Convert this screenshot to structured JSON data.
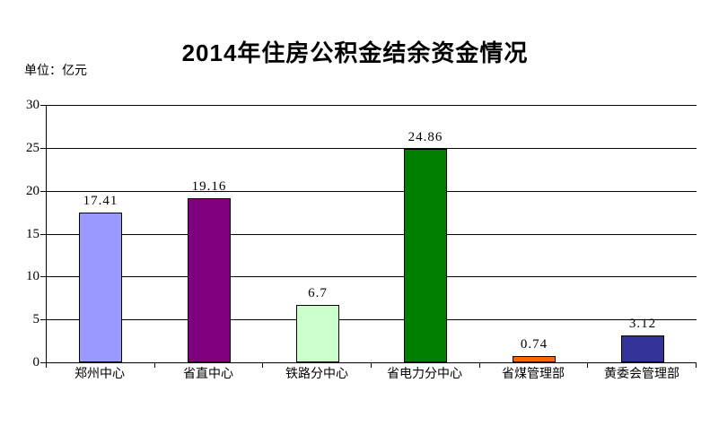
{
  "chart_data": {
    "type": "bar",
    "title": "2014年住房公积金结余资金情况",
    "unit_label": "单位：亿元",
    "categories": [
      "郑州中心",
      "省直中心",
      "铁路分中心",
      "省电力分中心",
      "省煤管理部",
      "黄委会管理部"
    ],
    "values": [
      17.41,
      19.16,
      6.7,
      24.86,
      0.74,
      3.12
    ],
    "value_labels": [
      "17.41",
      "19.16",
      "6.7",
      "24.86",
      "0.74",
      "3.12"
    ],
    "bar_colors": [
      "#9999FF",
      "#800080",
      "#CCFFCC",
      "#008000",
      "#FF6600",
      "#333399"
    ],
    "ylim": [
      0,
      30
    ],
    "yticks": [
      0,
      5,
      10,
      15,
      20,
      25,
      30
    ],
    "xlabel": "",
    "ylabel": "",
    "grid": "horizontal",
    "gridline_color": "#000000",
    "legend": "none",
    "bar_border_color": "#000000",
    "axis_color": "#000000",
    "background_color": "#FFFFFF",
    "text_color": "#000000"
  }
}
